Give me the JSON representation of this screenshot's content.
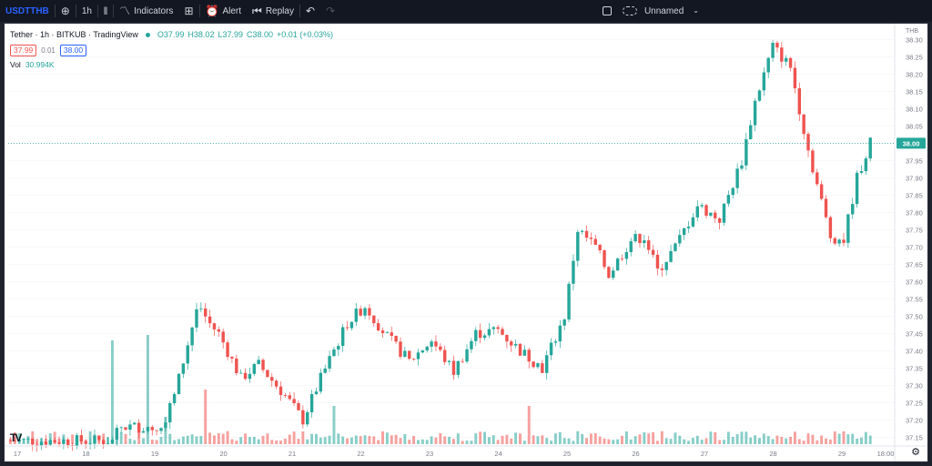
{
  "toolbar": {
    "symbol": "USDTTHB",
    "interval": "1h",
    "indicators_label": "Indicators",
    "alert_label": "Alert",
    "replay_label": "Replay",
    "layout_name": "Unnamed",
    "icons": [
      "add-circle-icon",
      "candles-icon",
      "indicators-icon",
      "templates-icon",
      "alert-icon",
      "replay-icon",
      "undo-icon",
      "redo-icon",
      "square-icon",
      "cloud-icon",
      "chevron-down-icon"
    ]
  },
  "legend": {
    "title": "Tether · 1h · BITKUB · TradingView",
    "open": "O37.99",
    "high": "H38.02",
    "low": "L37.99",
    "close": "C38.00",
    "change": "+0.01 (+0.03%)",
    "bid": "37.99",
    "spread": "0.01",
    "ask": "38.00",
    "vol_label": "Vol",
    "vol_value": "30.994K"
  },
  "colors": {
    "up": "#26a69a",
    "down": "#ef5350",
    "accent": "#2962ff"
  },
  "chart_data": {
    "type": "candlestick",
    "currency": "THB",
    "x_labels": [
      "17",
      "18",
      "19",
      "20",
      "21",
      "22",
      "23",
      "24",
      "25",
      "26",
      "27",
      "28",
      "29",
      "18:00"
    ],
    "y_ticks": [
      37.15,
      37.2,
      37.25,
      37.3,
      37.35,
      37.4,
      37.45,
      37.5,
      37.55,
      37.6,
      37.65,
      37.7,
      37.75,
      37.8,
      37.85,
      37.9,
      37.95,
      38.0,
      38.05,
      38.1,
      38.15,
      38.2,
      38.25,
      38.3
    ],
    "ylim": [
      37.13,
      38.33
    ],
    "last_price": "38.00",
    "last_value": 38.0,
    "path": [
      [
        0,
        37.14
      ],
      [
        23,
        37.14
      ],
      [
        25,
        37.18
      ],
      [
        34,
        37.18
      ],
      [
        37,
        37.27
      ],
      [
        42,
        37.52
      ],
      [
        47,
        37.45
      ],
      [
        52,
        37.32
      ],
      [
        56,
        37.36
      ],
      [
        62,
        37.27
      ],
      [
        66,
        37.2
      ],
      [
        70,
        37.32
      ],
      [
        76,
        37.48
      ],
      [
        80,
        37.53
      ],
      [
        85,
        37.44
      ],
      [
        90,
        37.37
      ],
      [
        95,
        37.43
      ],
      [
        100,
        37.34
      ],
      [
        105,
        37.45
      ],
      [
        110,
        37.46
      ],
      [
        115,
        37.4
      ],
      [
        120,
        37.35
      ],
      [
        125,
        37.5
      ],
      [
        128,
        37.75
      ],
      [
        132,
        37.7
      ],
      [
        135,
        37.62
      ],
      [
        140,
        37.72
      ],
      [
        143,
        37.73
      ],
      [
        146,
        37.63
      ],
      [
        150,
        37.7
      ],
      [
        155,
        37.82
      ],
      [
        160,
        37.78
      ],
      [
        165,
        37.95
      ],
      [
        168,
        38.12
      ],
      [
        172,
        38.28
      ],
      [
        176,
        38.22
      ],
      [
        180,
        37.98
      ],
      [
        185,
        37.73
      ],
      [
        188,
        37.72
      ],
      [
        191,
        37.9
      ],
      [
        194,
        38.0
      ]
    ],
    "volume_spikes": [
      [
        23,
        0.95
      ],
      [
        31,
        1.0
      ],
      [
        35,
        0.25
      ],
      [
        44,
        0.5
      ],
      [
        73,
        0.35
      ],
      [
        117,
        0.35
      ]
    ]
  }
}
